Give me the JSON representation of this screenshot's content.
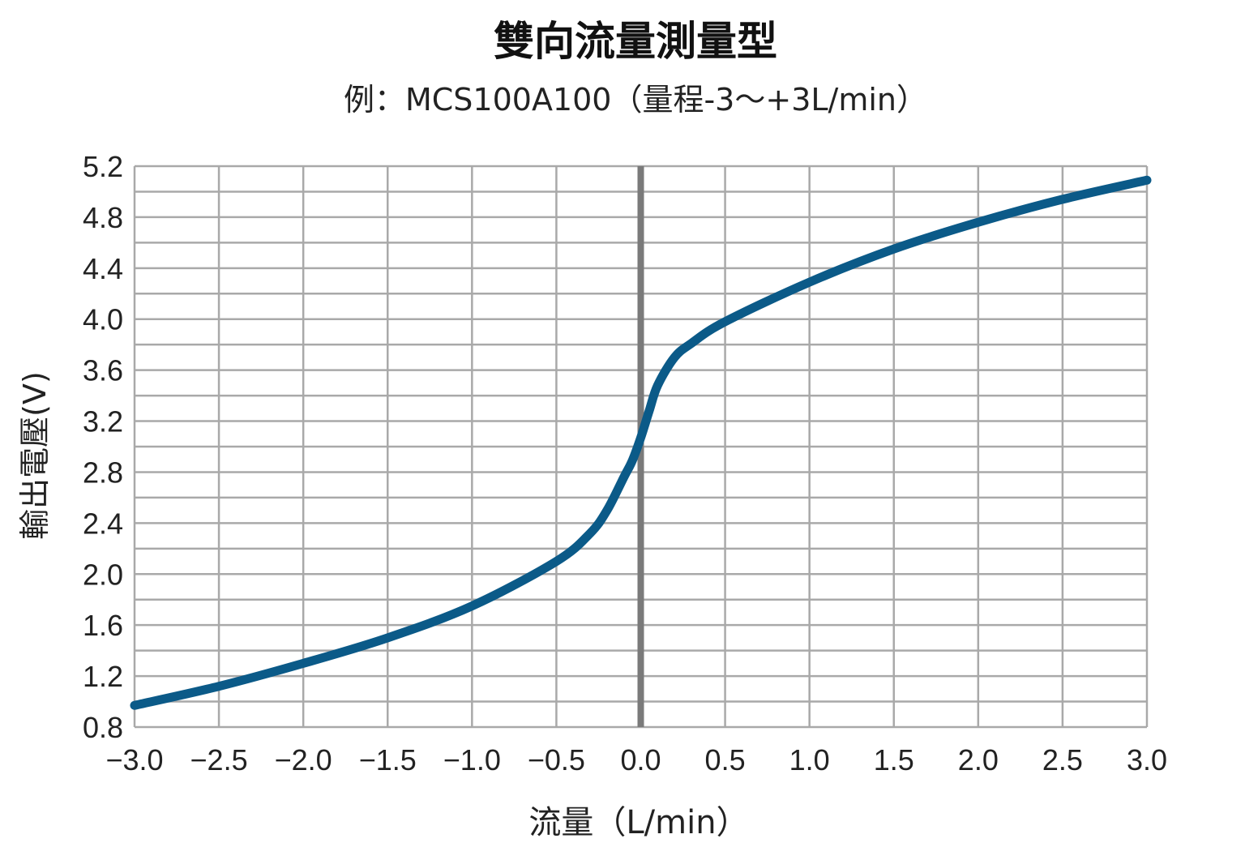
{
  "chart_data": {
    "type": "line",
    "title": "雙向流量測量型",
    "subtitle": "例：MCS100A100（量程-3～+3L/min）",
    "xlabel": "流量（L/min）",
    "ylabel": "輸出電壓(V)",
    "xlim": [
      -3.0,
      3.0
    ],
    "ylim": [
      0.8,
      5.2
    ],
    "x_ticks": [
      -3.0,
      -2.5,
      -2.0,
      -1.5,
      -1.0,
      -0.5,
      0.0,
      0.5,
      1.0,
      1.5,
      2.0,
      2.5,
      3.0
    ],
    "x_tick_labels": [
      "−3.0",
      "−2.5",
      "−2.0",
      "−1.5",
      "−1.0",
      "−0.5",
      "0.0",
      "0.5",
      "1.0",
      "1.5",
      "2.0",
      "2.5",
      "3.0"
    ],
    "y_ticks": [
      0.8,
      1.2,
      1.6,
      2.0,
      2.4,
      2.8,
      3.2,
      3.6,
      4.0,
      4.4,
      4.8,
      5.2
    ],
    "y_tick_labels": [
      "0.8",
      "1.2",
      "1.6",
      "2.0",
      "2.4",
      "2.8",
      "3.2",
      "3.6",
      "4.0",
      "4.4",
      "4.8",
      "5.2"
    ],
    "y_minor_step": 0.2,
    "grid": true,
    "series": [
      {
        "color": "#0b5a88",
        "x": [
          -3.0,
          -2.5,
          -2.0,
          -1.5,
          -1.0,
          -0.5,
          -0.3,
          -0.2,
          -0.1,
          -0.05,
          0.0,
          0.05,
          0.1,
          0.2,
          0.3,
          0.5,
          1.0,
          1.5,
          2.0,
          2.5,
          3.0
        ],
        "y": [
          0.97,
          1.12,
          1.3,
          1.5,
          1.75,
          2.1,
          2.32,
          2.5,
          2.76,
          2.89,
          3.07,
          3.28,
          3.48,
          3.7,
          3.81,
          3.98,
          4.29,
          4.55,
          4.76,
          4.94,
          5.09
        ]
      }
    ],
    "zero_line_color": "#7a7a7a"
  }
}
